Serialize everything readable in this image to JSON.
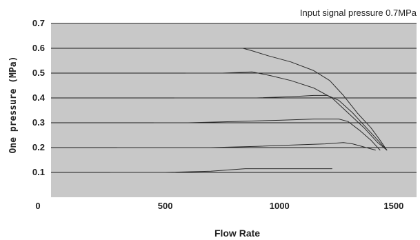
{
  "chart_data": {
    "type": "line",
    "title": "",
    "annotation": "Input signal pressure 0.7MPa",
    "xlabel": "Flow Rate",
    "ylabel": "One pressure (MPa)",
    "xlim": [
      0,
      1600
    ],
    "ylim": [
      0,
      0.7
    ],
    "x_ticks": [
      {
        "value": 0,
        "label": "0"
      },
      {
        "value": 500,
        "label": "500"
      },
      {
        "value": 1000,
        "label": "1000"
      },
      {
        "value": 1500,
        "label": "1500"
      }
    ],
    "y_ticks": [
      {
        "value": 0.1,
        "label": "0.1"
      },
      {
        "value": 0.2,
        "label": "0.2"
      },
      {
        "value": 0.3,
        "label": "0.3"
      },
      {
        "value": 0.4,
        "label": "0.4"
      },
      {
        "value": 0.5,
        "label": "0.5"
      },
      {
        "value": 0.6,
        "label": "0.6"
      },
      {
        "value": 0.7,
        "label": "0.7"
      }
    ],
    "grid": "horizontal",
    "colors": {
      "plot_background": "#c8c8c8",
      "grid": "#1a1a1a",
      "line": "#2a2a2a"
    },
    "series": [
      {
        "x": [
          260,
          500,
          700,
          850,
          1000,
          1150,
          1230
        ],
        "y": [
          0.1,
          0.1,
          0.105,
          0.115,
          0.115,
          0.115,
          0.115
        ]
      },
      {
        "x": [
          290,
          500,
          700,
          900,
          1050,
          1200,
          1280,
          1320,
          1380,
          1420
        ],
        "y": [
          0.2,
          0.2,
          0.2,
          0.205,
          0.21,
          0.215,
          0.22,
          0.215,
          0.2,
          0.19
        ]
      },
      {
        "x": [
          450,
          600,
          800,
          1000,
          1150,
          1260,
          1300,
          1350,
          1400,
          1440
        ],
        "y": [
          0.3,
          0.3,
          0.305,
          0.31,
          0.315,
          0.315,
          0.305,
          0.27,
          0.23,
          0.19
        ]
      },
      {
        "x": [
          540,
          700,
          900,
          1050,
          1150,
          1210,
          1260,
          1320,
          1380,
          1430,
          1470
        ],
        "y": [
          0.4,
          0.4,
          0.4,
          0.405,
          0.41,
          0.41,
          0.39,
          0.34,
          0.28,
          0.23,
          0.19
        ]
      },
      {
        "x": [
          590,
          750,
          880,
          960,
          1050,
          1150,
          1230,
          1300,
          1370,
          1430,
          1470
        ],
        "y": [
          0.5,
          0.5,
          0.505,
          0.49,
          0.47,
          0.44,
          0.4,
          0.34,
          0.28,
          0.22,
          0.19
        ]
      },
      {
        "x": [
          390,
          530,
          760,
          840,
          880,
          950,
          1050,
          1150,
          1220,
          1280,
          1340,
          1400,
          1440,
          1470
        ],
        "y": [
          0.6,
          0.6,
          0.6,
          0.6,
          0.59,
          0.57,
          0.545,
          0.51,
          0.47,
          0.41,
          0.34,
          0.28,
          0.23,
          0.19
        ]
      }
    ]
  }
}
